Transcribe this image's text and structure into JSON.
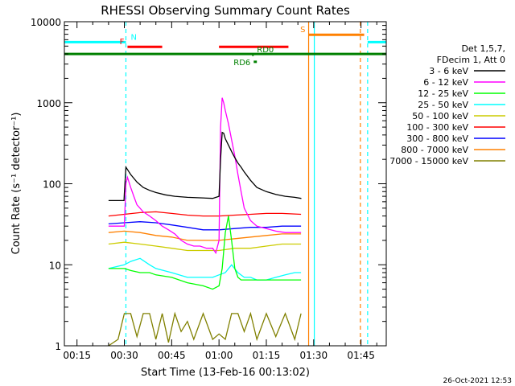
{
  "chart_data": {
    "type": "line",
    "title": "RHESSI Observing Summary Count Rates",
    "xlabel": "Start Time (13-Feb-16 00:13:02)",
    "ylabel": "Count Rate (s⁻¹ detector⁻¹)",
    "yscale": "log",
    "ylim": [
      1,
      10000
    ],
    "xlim_minutes": [
      11,
      113
    ],
    "x_ticks": [
      {
        "label": "00:15",
        "min": 15
      },
      {
        "label": "00:30",
        "min": 30
      },
      {
        "label": "00:45",
        "min": 45
      },
      {
        "label": "01:00",
        "min": 60
      },
      {
        "label": "01:15",
        "min": 75
      },
      {
        "label": "01:30",
        "min": 90
      },
      {
        "label": "01:45",
        "min": 105
      }
    ],
    "y_ticks": [
      {
        "label": "1",
        "v": 1
      },
      {
        "label": "10",
        "v": 10
      },
      {
        "label": "100",
        "v": 100
      },
      {
        "label": "1000",
        "v": 1000
      },
      {
        "label": "10000",
        "v": 10000
      }
    ],
    "legend": {
      "position": "right",
      "header": [
        "Det 1,5,7,",
        "FDecim 1, Att 0"
      ],
      "entries": [
        {
          "label": "3 - 6 keV",
          "color": "#000000"
        },
        {
          "label": "6 - 12 keV",
          "color": "#ff00ff"
        },
        {
          "label": "12 - 25 keV",
          "color": "#00ff00"
        },
        {
          "label": "25 - 50 keV",
          "color": "#00ffff"
        },
        {
          "label": "50 - 100 keV",
          "color": "#cccc00"
        },
        {
          "label": "100 - 300 keV",
          "color": "#ff0000"
        },
        {
          "label": "300 - 800 keV",
          "color": "#0000ff"
        },
        {
          "label": "800 - 7000 keV",
          "color": "#ff8000"
        },
        {
          "label": "7000 - 15000 keV",
          "color": "#808000"
        }
      ]
    },
    "series": [
      {
        "name": "3 - 6 keV",
        "color": "#000000",
        "x": [
          25,
          29.9,
          30,
          30.5,
          31,
          32,
          34,
          36,
          38,
          40,
          43,
          46,
          50,
          54,
          58,
          60,
          60.5,
          61,
          61.5,
          62,
          63,
          64,
          65,
          66,
          67,
          68,
          70,
          72,
          75,
          78,
          81,
          84,
          86,
          86.1
        ],
        "y": [
          62,
          62,
          75,
          160,
          150,
          130,
          105,
          90,
          83,
          78,
          73,
          70,
          68,
          67,
          66,
          70,
          200,
          430,
          420,
          360,
          300,
          250,
          210,
          180,
          160,
          140,
          110,
          90,
          80,
          74,
          70,
          68,
          66,
          66
        ]
      },
      {
        "name": "6 - 12 keV",
        "color": "#ff00ff",
        "x": [
          25,
          30,
          30.5,
          31,
          32,
          33,
          34,
          36,
          38,
          40,
          42,
          44,
          46,
          48,
          50,
          52,
          54,
          56,
          58,
          59,
          60,
          60.5,
          61,
          61.5,
          62,
          63,
          64,
          65,
          66,
          67,
          68,
          70,
          72,
          75,
          78,
          81,
          84,
          86
        ],
        "y": [
          30,
          30,
          100,
          120,
          90,
          70,
          55,
          45,
          40,
          35,
          30,
          27,
          24,
          20,
          18,
          17,
          17,
          16,
          16,
          14,
          20,
          500,
          1150,
          1000,
          800,
          550,
          350,
          220,
          130,
          80,
          50,
          35,
          30,
          28,
          26,
          25,
          25,
          25
        ]
      },
      {
        "name": "12 - 25 keV",
        "color": "#00ff00",
        "x": [
          25,
          29,
          30,
          32,
          35,
          38,
          40,
          45,
          50,
          55,
          58,
          60,
          61,
          62,
          63,
          64,
          65,
          66,
          67,
          68,
          70,
          72,
          75,
          78,
          81,
          84,
          86
        ],
        "y": [
          9,
          9,
          9,
          8.5,
          8,
          8,
          7.5,
          7,
          6,
          5.5,
          5,
          5.5,
          9,
          25,
          40,
          20,
          9,
          7,
          6.5,
          6.5,
          6.5,
          6.5,
          6.5,
          6.5,
          6.5,
          6.5,
          6.5
        ]
      },
      {
        "name": "25 - 50 keV",
        "color": "#00ffff",
        "x": [
          25,
          30,
          32,
          35,
          38,
          40,
          45,
          50,
          55,
          58,
          60,
          62,
          64,
          66,
          68,
          70,
          72,
          75,
          78,
          81,
          84,
          86
        ],
        "y": [
          9,
          10,
          11,
          12,
          10,
          9,
          8,
          7,
          7,
          7,
          7.5,
          8,
          10,
          8,
          7,
          7,
          6.5,
          6.5,
          7,
          7.5,
          8,
          8
        ]
      },
      {
        "name": "50 - 100 keV",
        "color": "#cccc00",
        "x": [
          25,
          30,
          35,
          40,
          45,
          50,
          55,
          60,
          65,
          70,
          75,
          80,
          86
        ],
        "y": [
          18,
          19,
          18,
          17,
          16,
          15,
          15,
          15,
          16,
          16,
          17,
          18,
          18
        ]
      },
      {
        "name": "100 - 300 keV",
        "color": "#ff0000",
        "x": [
          25,
          30,
          35,
          40,
          45,
          50,
          55,
          60,
          65,
          70,
          75,
          80,
          86
        ],
        "y": [
          40,
          42,
          44,
          45,
          43,
          41,
          40,
          40,
          41,
          42,
          43,
          43,
          42
        ]
      },
      {
        "name": "300 - 800 keV",
        "color": "#0000ff",
        "x": [
          25,
          30,
          35,
          40,
          45,
          50,
          55,
          60,
          65,
          70,
          75,
          80,
          86
        ],
        "y": [
          32,
          33,
          34,
          33,
          31,
          29,
          27,
          27,
          28,
          29,
          29,
          30,
          30
        ]
      },
      {
        "name": "800 - 7000 keV",
        "color": "#ff8000",
        "x": [
          25,
          30,
          35,
          40,
          45,
          50,
          55,
          60,
          65,
          70,
          75,
          80,
          86
        ],
        "y": [
          25,
          26,
          25,
          23,
          22,
          20,
          20,
          20,
          21,
          22,
          23,
          24,
          24
        ]
      },
      {
        "name": "7000 - 15000 keV",
        "color": "#808000",
        "x": [
          25,
          28,
          30,
          32,
          34,
          36,
          38,
          40,
          42,
          44,
          46,
          48,
          50,
          52,
          55,
          58,
          60,
          62,
          64,
          66,
          68,
          70,
          72,
          75,
          78,
          81,
          84,
          86
        ],
        "y": [
          1,
          1.2,
          2.5,
          2.5,
          1.3,
          2.5,
          2.5,
          1.2,
          2.5,
          1.1,
          2.5,
          1.5,
          2,
          1.2,
          2.5,
          1.2,
          1.4,
          1.2,
          2.5,
          2.5,
          1.5,
          2.5,
          1.2,
          2.5,
          1.3,
          2.5,
          1.2,
          2.5
        ]
      }
    ],
    "vlines": [
      {
        "min": 30.5,
        "color": "#00ffff",
        "style": "dashed"
      },
      {
        "min": 88.4,
        "color": "#ff8000",
        "style": "solid"
      },
      {
        "min": 90.2,
        "color": "#00ffff",
        "style": "solid"
      },
      {
        "min": 104.8,
        "color": "#ff8000",
        "style": "dashed"
      },
      {
        "min": 107.1,
        "color": "#00ffff",
        "style": "dashed"
      }
    ],
    "flag_bars": [
      {
        "label": "N",
        "color": "#00ffff",
        "segments": [
          [
            11,
            30.5
          ],
          [
            107.1,
            113
          ]
        ],
        "v": 5600
      },
      {
        "label": "F",
        "color": "#ff0000",
        "segments": [
          [
            31,
            42
          ]
        ],
        "v": 4900
      },
      {
        "label": "",
        "color": "#ff0000",
        "segments": [
          [
            60,
            82
          ]
        ],
        "v": 4900
      },
      {
        "label": "S",
        "color": "#ff8000",
        "segments": [
          [
            88.4,
            106
          ]
        ],
        "v": 6900
      },
      {
        "label": "",
        "color": "#008000",
        "segments": [
          [
            11,
            113
          ]
        ],
        "v": 4000
      },
      {
        "label": "RD0",
        "color": "#008000",
        "segments": [
          [
            70.5,
            71
          ]
        ],
        "v": 3900
      },
      {
        "label": "RD6",
        "color": "#008000",
        "segments": [
          [
            71,
            72
          ]
        ],
        "v": 3200
      }
    ],
    "footer_date": "26-Oct-2021 12:53"
  }
}
